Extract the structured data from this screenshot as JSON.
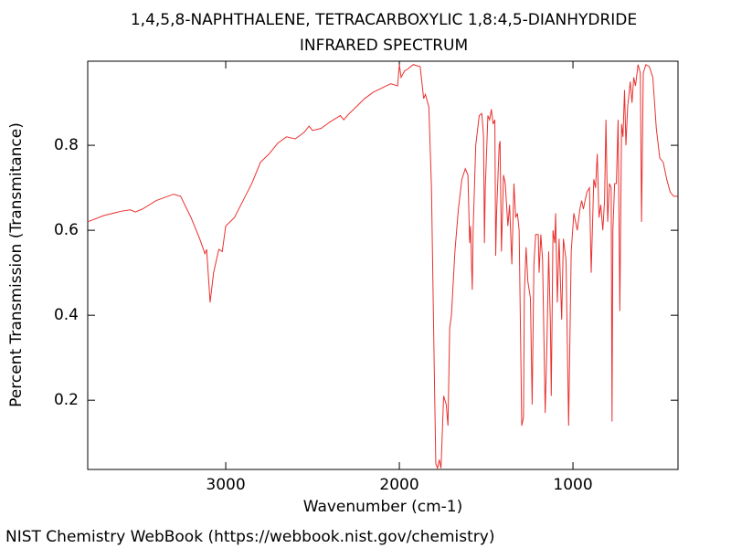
{
  "chart_data": {
    "type": "line",
    "title": "1,4,5,8-NAPHTHALENE, TETRACARBOXYLIC 1,8:4,5-DIANHYDRIDE",
    "subtitle": "INFRARED SPECTRUM",
    "x_label": "Wavenumber (cm-1)",
    "y_label": "Percent Transmission (Transmitance)",
    "color": "#e8312f",
    "xlim": [
      3795,
      395
    ],
    "ylim": [
      0.037,
      0.998
    ],
    "xticks": [
      3000,
      2000,
      1000
    ],
    "yticks": [
      0.2,
      0.4,
      0.6,
      0.8
    ],
    "x": [
      3795,
      3700,
      3600,
      3550,
      3520,
      3480,
      3400,
      3300,
      3260,
      3200,
      3150,
      3120,
      3110,
      3090,
      3070,
      3040,
      3020,
      3000,
      2950,
      2900,
      2850,
      2800,
      2750,
      2700,
      2650,
      2600,
      2550,
      2520,
      2500,
      2450,
      2400,
      2340,
      2320,
      2300,
      2250,
      2200,
      2150,
      2100,
      2050,
      2010,
      2000,
      1990,
      1970,
      1950,
      1920,
      1880,
      1860,
      1850,
      1830,
      1815,
      1800,
      1790,
      1780,
      1770,
      1760,
      1745,
      1730,
      1720,
      1710,
      1700,
      1680,
      1660,
      1640,
      1620,
      1605,
      1595,
      1590,
      1580,
      1575,
      1560,
      1540,
      1525,
      1515,
      1510,
      1505,
      1490,
      1480,
      1470,
      1460,
      1450,
      1445,
      1440,
      1425,
      1420,
      1412,
      1400,
      1390,
      1375,
      1365,
      1352,
      1340,
      1330,
      1320,
      1310,
      1295,
      1285,
      1280,
      1270,
      1260,
      1245,
      1235,
      1225,
      1215,
      1200,
      1195,
      1185,
      1175,
      1160,
      1150,
      1140,
      1130,
      1125,
      1115,
      1105,
      1100,
      1090,
      1080,
      1065,
      1055,
      1040,
      1025,
      1010,
      995,
      975,
      960,
      950,
      940,
      920,
      905,
      895,
      880,
      870,
      860,
      850,
      840,
      828,
      818,
      810,
      800,
      790,
      780,
      775,
      770,
      760,
      750,
      740,
      730,
      720,
      712,
      703,
      695,
      685,
      670,
      660,
      650,
      640,
      625,
      612,
      605,
      595,
      580,
      560,
      540,
      520,
      500,
      480,
      460,
      440,
      420,
      397
    ],
    "values": [
      0.62,
      0.635,
      0.645,
      0.648,
      0.643,
      0.65,
      0.67,
      0.685,
      0.68,
      0.63,
      0.58,
      0.545,
      0.555,
      0.43,
      0.5,
      0.555,
      0.55,
      0.61,
      0.63,
      0.67,
      0.71,
      0.76,
      0.78,
      0.805,
      0.82,
      0.815,
      0.83,
      0.845,
      0.835,
      0.84,
      0.855,
      0.87,
      0.86,
      0.87,
      0.89,
      0.91,
      0.925,
      0.935,
      0.945,
      0.94,
      0.99,
      0.96,
      0.975,
      0.98,
      0.99,
      0.985,
      0.91,
      0.92,
      0.89,
      0.7,
      0.3,
      0.05,
      0.04,
      0.06,
      0.04,
      0.21,
      0.19,
      0.14,
      0.37,
      0.4,
      0.55,
      0.65,
      0.72,
      0.745,
      0.73,
      0.57,
      0.61,
      0.46,
      0.6,
      0.8,
      0.87,
      0.875,
      0.82,
      0.57,
      0.7,
      0.87,
      0.86,
      0.885,
      0.85,
      0.86,
      0.54,
      0.64,
      0.8,
      0.81,
      0.55,
      0.73,
      0.71,
      0.61,
      0.66,
      0.52,
      0.71,
      0.63,
      0.64,
      0.6,
      0.14,
      0.16,
      0.45,
      0.56,
      0.48,
      0.44,
      0.19,
      0.52,
      0.59,
      0.59,
      0.5,
      0.59,
      0.53,
      0.17,
      0.33,
      0.55,
      0.38,
      0.21,
      0.6,
      0.57,
      0.64,
      0.43,
      0.58,
      0.39,
      0.58,
      0.53,
      0.14,
      0.55,
      0.64,
      0.6,
      0.65,
      0.67,
      0.65,
      0.69,
      0.7,
      0.5,
      0.72,
      0.7,
      0.78,
      0.63,
      0.66,
      0.6,
      0.67,
      0.86,
      0.62,
      0.71,
      0.7,
      0.15,
      0.6,
      0.71,
      0.71,
      0.86,
      0.41,
      0.85,
      0.82,
      0.93,
      0.8,
      0.89,
      0.95,
      0.9,
      0.96,
      0.94,
      0.99,
      0.97,
      0.62,
      0.97,
      0.99,
      0.985,
      0.96,
      0.84,
      0.77,
      0.76,
      0.72,
      0.69,
      0.68,
      0.68
    ]
  },
  "source": "NIST Chemistry WebBook (https://webbook.nist.gov/chemistry)"
}
